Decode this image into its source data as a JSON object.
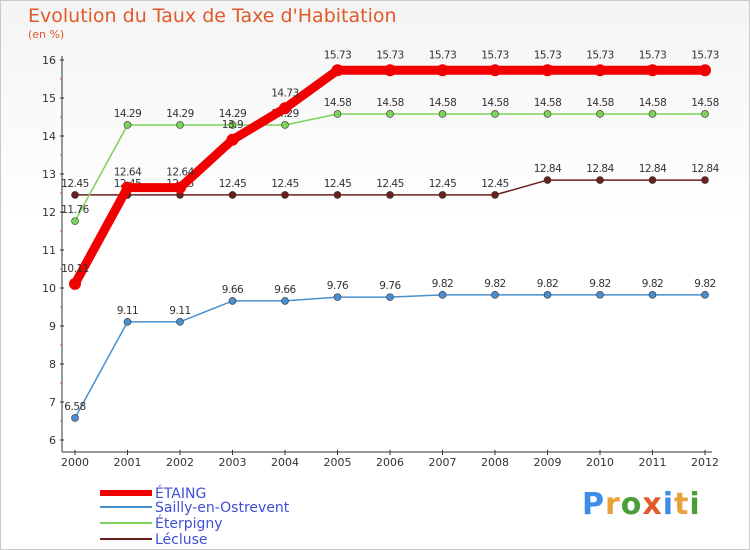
{
  "header": {
    "title": "Evolution du Taux de Taxe d'Habitation",
    "subtitle": "(en %)"
  },
  "logo": {
    "text": "Proxiti",
    "letter_colors": [
      "#3a8ee6",
      "#e8a23a",
      "#4a9e3a",
      "#e25a2a",
      "#3a8ee6",
      "#e8a23a",
      "#4a9e3a"
    ]
  },
  "chart_data": {
    "type": "line",
    "title": "Evolution du Taux de Taxe d'Habitation",
    "ylabel": "(en %)",
    "xlabel": "",
    "ylim": [
      6,
      16
    ],
    "yticks": [
      "6",
      "7",
      "8",
      "9",
      "10",
      "11",
      "12",
      "13",
      "14",
      "15",
      "16"
    ],
    "categories": [
      "2000",
      "2001",
      "2002",
      "2003",
      "2004",
      "2005",
      "2006",
      "2007",
      "2008",
      "2009",
      "2010",
      "2011",
      "2012"
    ],
    "grid": false,
    "legend_position": "bottom-left",
    "series": [
      {
        "name": "Lécluse",
        "color": "#6b1f1f",
        "values": [
          12.45,
          12.45,
          12.45,
          12.45,
          12.45,
          12.45,
          12.45,
          12.45,
          12.45,
          12.84,
          12.84,
          12.84,
          12.84
        ],
        "labels": [
          "12.45",
          "12.45",
          "12.45",
          "12.45",
          "12.45",
          "12.45",
          "12.45",
          "12.45",
          "12.45",
          "12.84",
          "12.84",
          "12.84",
          "12.84"
        ]
      },
      {
        "name": "Éterpigny",
        "color": "#7dd35a",
        "values": [
          11.76,
          14.29,
          14.29,
          14.29,
          14.29,
          14.58,
          14.58,
          14.58,
          14.58,
          14.58,
          14.58,
          14.58,
          14.58
        ],
        "labels": [
          "11.76",
          "14.29",
          "14.29",
          "14.29",
          "14.29",
          "14.58",
          "14.58",
          "14.58",
          "14.58",
          "14.58",
          "14.58",
          "14.58",
          "14.58"
        ]
      },
      {
        "name": "Sailly-en-Ostrevent",
        "color": "#4a8fcf",
        "values": [
          6.58,
          9.11,
          9.11,
          9.66,
          9.66,
          9.76,
          9.76,
          9.82,
          9.82,
          9.82,
          9.82,
          9.82,
          9.82
        ],
        "labels": [
          "6.58",
          "9.11",
          "9.11",
          "9.66",
          "9.66",
          "9.76",
          "9.76",
          "9.82",
          "9.82",
          "9.82",
          "9.82",
          "9.82",
          "9.82"
        ]
      },
      {
        "name": "ÉTAING",
        "color": "#f00000",
        "values": [
          10.11,
          12.64,
          12.64,
          13.9,
          14.73,
          15.73,
          15.73,
          15.73,
          15.73,
          15.73,
          15.73,
          15.73,
          15.73
        ],
        "labels": [
          "10.11",
          "12.64",
          "12.64",
          "13.9",
          "14.73",
          "15.73",
          "15.73",
          "15.73",
          "15.73",
          "15.73",
          "15.73",
          "15.73",
          "15.73"
        ]
      }
    ],
    "legend": [
      "ÉTAING",
      "Sailly-en-Ostrevent",
      "Éterpigny",
      "Lécluse"
    ]
  }
}
